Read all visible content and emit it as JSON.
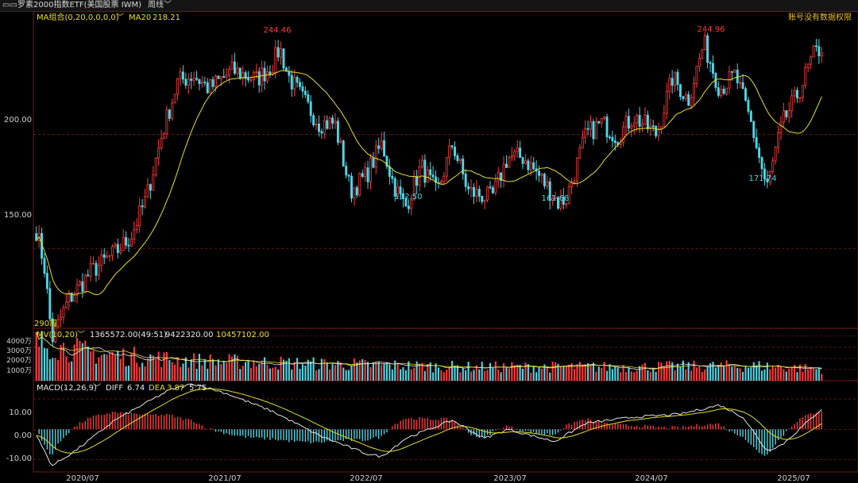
{
  "topbar": {
    "icon": "dual-square-icon",
    "title": "罗素2000指数ETF(美国股票 IWM)",
    "period": "周线",
    "dropdown_icon": "chevron-down-icon"
  },
  "colors": {
    "up": "#ff3b3b",
    "down": "#4fd6e6",
    "ma": "#e8e020",
    "grid": "#8a1a1a",
    "axis": "#7a1a1a",
    "text": "#d0d0d0",
    "high_label": "#ff3b3b",
    "low_label": "#4fd6e6",
    "diff": "#e6e6e6",
    "dea": "#e8e020",
    "notice": "#e8c020"
  },
  "main_panel": {
    "indicator": "MA组合(0,20,0,0,0,0)",
    "ma_label": "MA20",
    "ma_value": "218.21",
    "notice": "账号没有数据权限",
    "period_count": "290周",
    "y_ticks": [
      "200.00",
      "150.00"
    ],
    "annotations": [
      {
        "text": "244.46",
        "kind": "high"
      },
      {
        "text": "244.96",
        "kind": "high"
      },
      {
        "text": "162.50",
        "kind": "low"
      },
      {
        "text": "161.68",
        "kind": "low"
      },
      {
        "text": "171.74",
        "kind": "low"
      }
    ]
  },
  "volume_panel": {
    "indicator": "MV(10,20)",
    "value1": "1365572.00(49:51)",
    "value2": "9422320.00",
    "value3": "10457102.00",
    "y_ticks": [
      "4000万",
      "3000万",
      "2000万",
      "1000万"
    ]
  },
  "macd_panel": {
    "indicator": "MACD(12,26,9)",
    "diff_label": "DIFF",
    "diff_value": "6.74",
    "dea_label": "DEA",
    "dea_value": "3.87",
    "macd_value": "5.75",
    "y_ticks": [
      "10.00",
      "0.00",
      "-10.00"
    ]
  },
  "x_labels": [
    "2020/07",
    "2021/07",
    "2022/07",
    "2023/07",
    "2024/07",
    "2025/07"
  ],
  "chart_data": {
    "type": "candlestick",
    "title": "罗素2000指数ETF(美国股票 IWM)",
    "frequency": "weekly",
    "bars": 290,
    "price": {
      "ylim": [
        115,
        254
      ],
      "gridlines": [
        200,
        150
      ],
      "anchors": [
        {
          "x": 0.0,
          "y": 158
        },
        {
          "x": 0.01,
          "y": 143
        },
        {
          "x": 0.02,
          "y": 110
        },
        {
          "x": 0.04,
          "y": 127
        },
        {
          "x": 0.07,
          "y": 140
        },
        {
          "x": 0.1,
          "y": 148
        },
        {
          "x": 0.12,
          "y": 155
        },
        {
          "x": 0.14,
          "y": 172
        },
        {
          "x": 0.16,
          "y": 200
        },
        {
          "x": 0.18,
          "y": 223
        },
        {
          "x": 0.2,
          "y": 226
        },
        {
          "x": 0.22,
          "y": 220
        },
        {
          "x": 0.25,
          "y": 228
        },
        {
          "x": 0.28,
          "y": 224
        },
        {
          "x": 0.3,
          "y": 230
        },
        {
          "x": 0.31,
          "y": 238
        },
        {
          "x": 0.32,
          "y": 226
        },
        {
          "x": 0.34,
          "y": 215
        },
        {
          "x": 0.36,
          "y": 205
        },
        {
          "x": 0.38,
          "y": 205
        },
        {
          "x": 0.4,
          "y": 175
        },
        {
          "x": 0.42,
          "y": 182
        },
        {
          "x": 0.44,
          "y": 196
        },
        {
          "x": 0.455,
          "y": 178
        },
        {
          "x": 0.47,
          "y": 168
        },
        {
          "x": 0.49,
          "y": 186
        },
        {
          "x": 0.51,
          "y": 174
        },
        {
          "x": 0.53,
          "y": 196
        },
        {
          "x": 0.55,
          "y": 175
        },
        {
          "x": 0.58,
          "y": 172
        },
        {
          "x": 0.6,
          "y": 190
        },
        {
          "x": 0.62,
          "y": 190
        },
        {
          "x": 0.64,
          "y": 182
        },
        {
          "x": 0.665,
          "y": 170
        },
        {
          "x": 0.675,
          "y": 172
        },
        {
          "x": 0.7,
          "y": 200
        },
        {
          "x": 0.72,
          "y": 205
        },
        {
          "x": 0.74,
          "y": 199
        },
        {
          "x": 0.76,
          "y": 208
        },
        {
          "x": 0.79,
          "y": 200
        },
        {
          "x": 0.81,
          "y": 225
        },
        {
          "x": 0.83,
          "y": 215
        },
        {
          "x": 0.85,
          "y": 240
        },
        {
          "x": 0.87,
          "y": 220
        },
        {
          "x": 0.89,
          "y": 226
        },
        {
          "x": 0.91,
          "y": 205
        },
        {
          "x": 0.93,
          "y": 176
        },
        {
          "x": 0.95,
          "y": 205
        },
        {
          "x": 0.97,
          "y": 218
        },
        {
          "x": 0.99,
          "y": 235
        },
        {
          "x": 1.0,
          "y": 238
        }
      ]
    },
    "volume": {
      "ylim": [
        0,
        4700
      ],
      "unit": "万",
      "anchors": [
        {
          "x": 0.0,
          "y": 3600
        },
        {
          "x": 0.08,
          "y": 2500
        },
        {
          "x": 0.2,
          "y": 1900
        },
        {
          "x": 0.35,
          "y": 1600
        },
        {
          "x": 0.55,
          "y": 1300
        },
        {
          "x": 0.75,
          "y": 1300
        },
        {
          "x": 0.92,
          "y": 1400
        },
        {
          "x": 1.0,
          "y": 1100
        }
      ]
    },
    "macd": {
      "ylim": [
        -14,
        16
      ],
      "diff_anchors": [
        {
          "x": 0.0,
          "y": -2
        },
        {
          "x": 0.02,
          "y": -12
        },
        {
          "x": 0.05,
          "y": -7
        },
        {
          "x": 0.1,
          "y": 3
        },
        {
          "x": 0.17,
          "y": 13
        },
        {
          "x": 0.2,
          "y": 15
        },
        {
          "x": 0.24,
          "y": 12
        },
        {
          "x": 0.3,
          "y": 6
        },
        {
          "x": 0.36,
          "y": -2
        },
        {
          "x": 0.42,
          "y": -8
        },
        {
          "x": 0.44,
          "y": -9
        },
        {
          "x": 0.47,
          "y": -3
        },
        {
          "x": 0.53,
          "y": 3
        },
        {
          "x": 0.57,
          "y": -3
        },
        {
          "x": 0.6,
          "y": 0
        },
        {
          "x": 0.66,
          "y": -4
        },
        {
          "x": 0.7,
          "y": 2
        },
        {
          "x": 0.76,
          "y": 4
        },
        {
          "x": 0.82,
          "y": 5
        },
        {
          "x": 0.87,
          "y": 8
        },
        {
          "x": 0.9,
          "y": 4
        },
        {
          "x": 0.93,
          "y": -7
        },
        {
          "x": 0.95,
          "y": -5
        },
        {
          "x": 0.98,
          "y": 2
        },
        {
          "x": 1.0,
          "y": 6.74
        }
      ],
      "dea_last": 3.87,
      "macd_last": 5.75
    },
    "x_tick_labels": [
      "2020/07",
      "2021/07",
      "2022/07",
      "2023/07",
      "2024/07",
      "2025/07"
    ]
  }
}
